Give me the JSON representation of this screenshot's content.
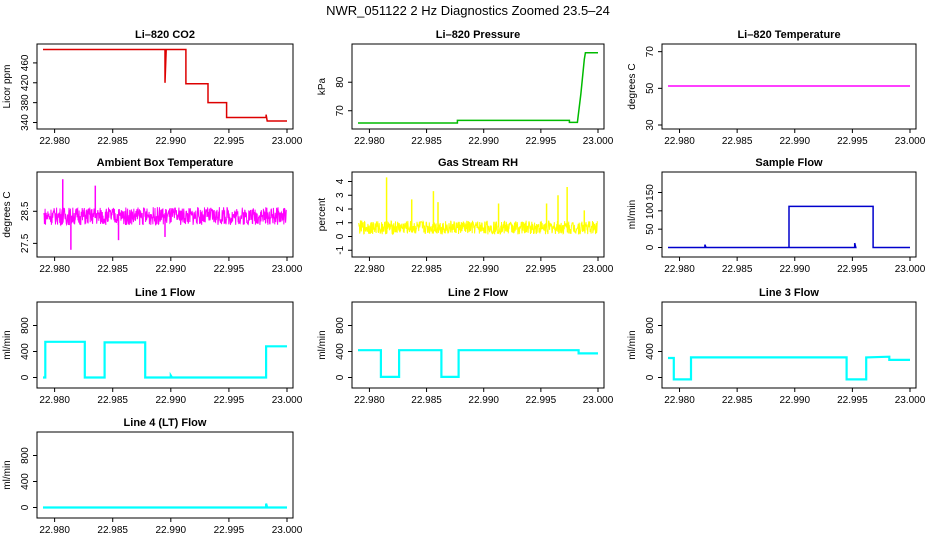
{
  "figure": {
    "title": "NWR_051122  2 Hz Diagnostics Zoomed 23.5–24"
  },
  "colors": {
    "red": "#dd0000",
    "green": "#00bb00",
    "magenta": "#ff00ff",
    "yellow": "#ffff00",
    "blue": "#0000cc",
    "cyan": "#00ffff"
  },
  "chart_data": [
    {
      "type": "line",
      "title": "Li–820 CO2",
      "ylabel": "Licor ppm",
      "color": "red",
      "xlim": [
        22.979,
        23.0
      ],
      "ylim": [
        335,
        490
      ],
      "xticks": [
        "22.980",
        "22.985",
        "22.990",
        "22.995",
        "23.000"
      ],
      "yticks": [
        340,
        380,
        420,
        460
      ],
      "series": [
        {
          "kind": "step",
          "points": [
            [
              22.979,
              487
            ],
            [
              22.9895,
              487
            ],
            [
              22.9895,
              420
            ],
            [
              22.9896,
              487
            ],
            [
              22.9913,
              487
            ],
            [
              22.9913,
              418
            ],
            [
              22.9932,
              418
            ],
            [
              22.9932,
              380
            ],
            [
              22.9948,
              380
            ],
            [
              22.9948,
              350
            ],
            [
              22.9982,
              350
            ],
            [
              22.9982,
              356
            ],
            [
              22.9983,
              343
            ],
            [
              23.0,
              343
            ]
          ]
        }
      ]
    },
    {
      "type": "line",
      "title": "Li–820 Pressure",
      "ylabel": "kPa",
      "color": "green",
      "xlim": [
        22.979,
        23.0
      ],
      "ylim": [
        65,
        92
      ],
      "xticks": [
        "22.980",
        "22.985",
        "22.990",
        "22.995",
        "23.000"
      ],
      "yticks": [
        70,
        80
      ],
      "series": [
        {
          "kind": "step",
          "points": [
            [
              22.979,
              65.7
            ],
            [
              22.9877,
              65.7
            ],
            [
              22.9877,
              66.6
            ],
            [
              22.9975,
              66.6
            ],
            [
              22.9975,
              65.9
            ],
            [
              22.9982,
              65.9
            ],
            [
              22.9985,
              76
            ],
            [
              22.9988,
              88
            ],
            [
              22.9989,
              90.3
            ],
            [
              23.0,
              90.3
            ]
          ]
        }
      ]
    },
    {
      "type": "line",
      "title": "Li–820 Temperature",
      "ylabel": "degrees C",
      "color": "magenta",
      "xlim": [
        22.979,
        23.0
      ],
      "ylim": [
        30,
        72
      ],
      "xticks": [
        "22.980",
        "22.985",
        "22.990",
        "22.995",
        "23.000"
      ],
      "yticks": [
        30,
        50,
        70
      ],
      "series": [
        {
          "kind": "step",
          "points": [
            [
              22.979,
              51.3
            ],
            [
              23.0,
              51.3
            ]
          ]
        }
      ]
    },
    {
      "type": "line",
      "title": "Ambient Box Temperature",
      "ylabel": "degrees C",
      "color": "magenta",
      "xlim": [
        22.979,
        23.0
      ],
      "ylim": [
        27.2,
        29.6
      ],
      "xticks": [
        "22.980",
        "22.985",
        "22.990",
        "22.995",
        "23.000"
      ],
      "yticks": [
        27.5,
        28.5
      ],
      "series": [
        {
          "kind": "noise",
          "center": 28.35,
          "amp": 0.28,
          "spikes": [
            [
              22.9814,
              27.3
            ],
            [
              22.9855,
              27.6
            ],
            [
              22.9895,
              27.7
            ],
            [
              22.9807,
              29.5
            ],
            [
              22.9835,
              29.3
            ]
          ]
        }
      ]
    },
    {
      "type": "line",
      "title": "Gas Stream RH",
      "ylabel": "percent",
      "color": "yellow",
      "xlim": [
        22.979,
        23.0
      ],
      "ylim": [
        -1.2,
        4.4
      ],
      "xticks": [
        "22.980",
        "22.985",
        "22.990",
        "22.995",
        "23.000"
      ],
      "yticks": [
        -1,
        0,
        1,
        2,
        3,
        4
      ],
      "series": [
        {
          "kind": "noise",
          "center": 0.65,
          "amp": 0.5,
          "spikes": [
            [
              22.9815,
              4.3
            ],
            [
              22.9837,
              2.7
            ],
            [
              22.9856,
              3.3
            ],
            [
              22.986,
              2.5
            ],
            [
              22.9913,
              2.4
            ],
            [
              22.9955,
              2.4
            ],
            [
              22.9965,
              3.0
            ],
            [
              22.9973,
              3.6
            ],
            [
              22.9988,
              1.9
            ]
          ]
        }
      ]
    },
    {
      "type": "line",
      "title": "Sample Flow",
      "ylabel": "ml/min",
      "color": "blue",
      "xlim": [
        22.979,
        23.0
      ],
      "ylim": [
        -15,
        195
      ],
      "xticks": [
        "22.980",
        "22.985",
        "22.990",
        "22.995",
        "23.000"
      ],
      "yticks": [
        0,
        50,
        100,
        150
      ],
      "series": [
        {
          "kind": "step",
          "points": [
            [
              22.979,
              0
            ],
            [
              22.9822,
              0
            ],
            [
              22.9822,
              8
            ],
            [
              22.9823,
              0
            ],
            [
              22.9952,
              0
            ],
            [
              22.9952,
              12
            ],
            [
              22.9953,
              0
            ],
            [
              22.9895,
              0
            ],
            [
              22.9895,
              112
            ],
            [
              22.9968,
              112
            ],
            [
              22.9968,
              0
            ],
            [
              23.0,
              0
            ]
          ]
        }
      ]
    },
    {
      "type": "line",
      "title": "Line 1 Flow",
      "ylabel": "ml/min",
      "color": "cyan",
      "xlim": [
        22.979,
        23.0
      ],
      "ylim": [
        -100,
        1100
      ],
      "xticks": [
        "22.980",
        "22.985",
        "22.990",
        "22.995",
        "23.000"
      ],
      "yticks": [
        0,
        400,
        800
      ],
      "series": [
        {
          "kind": "step",
          "points": [
            [
              22.979,
              0
            ],
            [
              22.9792,
              0
            ],
            [
              22.9792,
              550
            ],
            [
              22.9826,
              550
            ],
            [
              22.9826,
              0
            ],
            [
              22.9843,
              0
            ],
            [
              22.9843,
              540
            ],
            [
              22.9878,
              540
            ],
            [
              22.9878,
              0
            ],
            [
              22.99,
              0
            ],
            [
              22.99,
              30
            ],
            [
              22.9901,
              0
            ],
            [
              22.9982,
              0
            ],
            [
              22.9982,
              480
            ],
            [
              23.0,
              480
            ]
          ]
        }
      ]
    },
    {
      "type": "line",
      "title": "Line 2 Flow",
      "ylabel": "ml/min",
      "color": "cyan",
      "xlim": [
        22.979,
        23.0
      ],
      "ylim": [
        -100,
        1100
      ],
      "xticks": [
        "22.980",
        "22.985",
        "22.990",
        "22.995",
        "23.000"
      ],
      "yticks": [
        0,
        400,
        800
      ],
      "series": [
        {
          "kind": "step",
          "points": [
            [
              22.979,
              420
            ],
            [
              22.981,
              420
            ],
            [
              22.981,
              10
            ],
            [
              22.9826,
              10
            ],
            [
              22.9826,
              420
            ],
            [
              22.9863,
              420
            ],
            [
              22.9863,
              10
            ],
            [
              22.9878,
              10
            ],
            [
              22.9878,
              420
            ],
            [
              22.9983,
              420
            ],
            [
              22.9983,
              370
            ],
            [
              23.0,
              370
            ]
          ]
        }
      ]
    },
    {
      "type": "line",
      "title": "Line 3 Flow",
      "ylabel": "ml/min",
      "color": "cyan",
      "xlim": [
        22.979,
        23.0
      ],
      "ylim": [
        -100,
        1100
      ],
      "xticks": [
        "22.980",
        "22.985",
        "22.990",
        "22.995",
        "23.000"
      ],
      "yticks": [
        0,
        400,
        800
      ],
      "series": [
        {
          "kind": "step",
          "points": [
            [
              22.979,
              300
            ],
            [
              22.9795,
              300
            ],
            [
              22.9795,
              -30
            ],
            [
              22.981,
              -30
            ],
            [
              22.981,
              310
            ],
            [
              22.9945,
              310
            ],
            [
              22.9945,
              -30
            ],
            [
              22.9962,
              -30
            ],
            [
              22.9962,
              310
            ],
            [
              22.9982,
              320
            ],
            [
              22.9982,
              270
            ],
            [
              23.0,
              270
            ]
          ]
        }
      ]
    },
    {
      "type": "line",
      "title": "Line 4 (LT) Flow",
      "ylabel": "ml/min",
      "color": "cyan",
      "xlim": [
        22.979,
        23.0
      ],
      "ylim": [
        -100,
        1100
      ],
      "xticks": [
        "22.980",
        "22.985",
        "22.990",
        "22.995",
        "23.000"
      ],
      "yticks": [
        0,
        400,
        800
      ],
      "series": [
        {
          "kind": "step",
          "points": [
            [
              22.979,
              0
            ],
            [
              22.9982,
              0
            ],
            [
              22.9982,
              60
            ],
            [
              22.9983,
              0
            ],
            [
              23.0,
              0
            ]
          ]
        }
      ]
    }
  ]
}
